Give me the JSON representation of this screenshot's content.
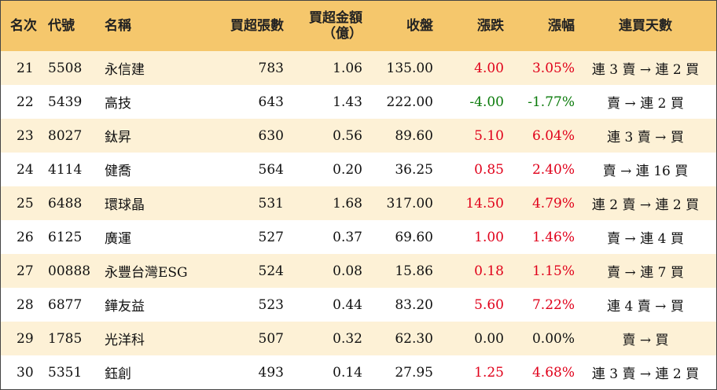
{
  "headers": {
    "rank": "名次",
    "code": "代號",
    "name": "名稱",
    "net_buy_lots": "買超張數",
    "net_buy_amount_line1": "買超金額",
    "net_buy_amount_line2": "（億）",
    "close": "收盤",
    "change": "漲跌",
    "change_pct": "漲幅",
    "consecutive_days": "連買天數"
  },
  "colors": {
    "header_bg": "#f5c76c",
    "stripe_bg": "#fdf1d6",
    "up": "#e0001a",
    "down": "#0a7a0a"
  },
  "rows": [
    {
      "rank": "21",
      "code": "5508",
      "name": "永信建",
      "lots": "783",
      "amount": "1.06",
      "close": "135.00",
      "change": "4.00",
      "pct": "3.05%",
      "days": "連 3 賣 → 連 2 買",
      "trend": "up"
    },
    {
      "rank": "22",
      "code": "5439",
      "name": "高技",
      "lots": "643",
      "amount": "1.43",
      "close": "222.00",
      "change": "-4.00",
      "pct": "-1.77%",
      "days": "賣 → 連 2 買",
      "trend": "down"
    },
    {
      "rank": "23",
      "code": "8027",
      "name": "鈦昇",
      "lots": "630",
      "amount": "0.56",
      "close": "89.60",
      "change": "5.10",
      "pct": "6.04%",
      "days": "連 3 賣 → 買",
      "trend": "up"
    },
    {
      "rank": "24",
      "code": "4114",
      "name": "健喬",
      "lots": "564",
      "amount": "0.20",
      "close": "36.25",
      "change": "0.85",
      "pct": "2.40%",
      "days": "賣 → 連 16 買",
      "trend": "up"
    },
    {
      "rank": "25",
      "code": "6488",
      "name": "環球晶",
      "lots": "531",
      "amount": "1.68",
      "close": "317.00",
      "change": "14.50",
      "pct": "4.79%",
      "days": "連 2 賣 → 連 2 買",
      "trend": "up"
    },
    {
      "rank": "26",
      "code": "6125",
      "name": "廣運",
      "lots": "527",
      "amount": "0.37",
      "close": "69.60",
      "change": "1.00",
      "pct": "1.46%",
      "days": "賣 → 連 4 買",
      "trend": "up"
    },
    {
      "rank": "27",
      "code": "00888",
      "name": "永豐台灣ESG",
      "lots": "524",
      "amount": "0.08",
      "close": "15.86",
      "change": "0.18",
      "pct": "1.15%",
      "days": "賣 → 連 7 買",
      "trend": "up"
    },
    {
      "rank": "28",
      "code": "6877",
      "name": "鏵友益",
      "lots": "523",
      "amount": "0.44",
      "close": "83.20",
      "change": "5.60",
      "pct": "7.22%",
      "days": "連 4 賣 → 買",
      "trend": "up"
    },
    {
      "rank": "29",
      "code": "1785",
      "name": "光洋科",
      "lots": "507",
      "amount": "0.32",
      "close": "62.30",
      "change": "0.00",
      "pct": "0.00%",
      "days": "賣 → 買",
      "trend": "flat"
    },
    {
      "rank": "30",
      "code": "5351",
      "name": "鈺創",
      "lots": "493",
      "amount": "0.14",
      "close": "27.95",
      "change": "1.25",
      "pct": "4.68%",
      "days": "連 3 賣 → 連 2 買",
      "trend": "up"
    }
  ]
}
